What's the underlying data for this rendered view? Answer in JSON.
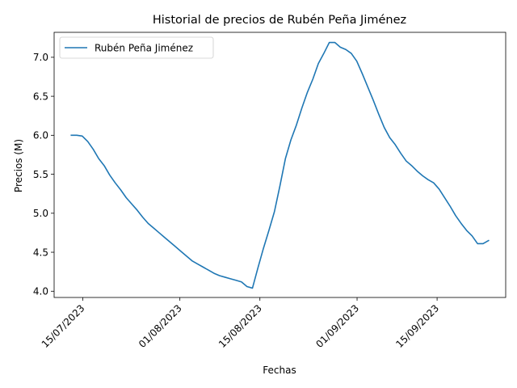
{
  "chart_data": {
    "type": "line",
    "title": "Historial de precios de Rubén Peña Jiménez",
    "xlabel": "Fechas",
    "ylabel": "Precios (M)",
    "x_start": "2023-07-13",
    "x_end": "2023-09-24",
    "xlim": [
      "2023-07-10",
      "2023-09-27"
    ],
    "ylim": [
      3.92,
      7.32
    ],
    "x_ticks": [
      {
        "date": "2023-07-15",
        "label": "15/07/2023"
      },
      {
        "date": "2023-08-01",
        "label": "01/08/2023"
      },
      {
        "date": "2023-08-15",
        "label": "15/08/2023"
      },
      {
        "date": "2023-09-01",
        "label": "01/09/2023"
      },
      {
        "date": "2023-09-15",
        "label": "15/09/2023"
      }
    ],
    "y_ticks": [
      {
        "value": 4.0,
        "label": "4.0"
      },
      {
        "value": 4.5,
        "label": "4.5"
      },
      {
        "value": 5.0,
        "label": "5.0"
      },
      {
        "value": 5.5,
        "label": "5.5"
      },
      {
        "value": 6.0,
        "label": "6.0"
      },
      {
        "value": 6.5,
        "label": "6.5"
      },
      {
        "value": 7.0,
        "label": "7.0"
      }
    ],
    "grid": false,
    "legend_position": "top-left",
    "series": [
      {
        "name": "Rubén Peña Jiménez",
        "color": "#1f77b4",
        "values": [
          6.0,
          6.0,
          5.99,
          5.92,
          5.82,
          5.7,
          5.61,
          5.49,
          5.39,
          5.3,
          5.2,
          5.12,
          5.04,
          4.95,
          4.87,
          4.81,
          4.75,
          4.69,
          4.63,
          4.57,
          4.51,
          4.45,
          4.39,
          4.35,
          4.31,
          4.27,
          4.23,
          4.2,
          4.18,
          4.16,
          4.14,
          4.12,
          4.06,
          4.04,
          4.3,
          4.55,
          4.78,
          5.02,
          5.35,
          5.7,
          5.94,
          6.13,
          6.35,
          6.55,
          6.72,
          6.92,
          7.05,
          7.19,
          7.19,
          7.13,
          7.1,
          7.05,
          6.95,
          6.79,
          6.62,
          6.45,
          6.27,
          6.1,
          5.97,
          5.88,
          5.77,
          5.67,
          5.61,
          5.54,
          5.48,
          5.43,
          5.39,
          5.31,
          5.2,
          5.09,
          4.97,
          4.87,
          4.78,
          4.71,
          4.61,
          4.61,
          4.65
        ]
      }
    ]
  }
}
